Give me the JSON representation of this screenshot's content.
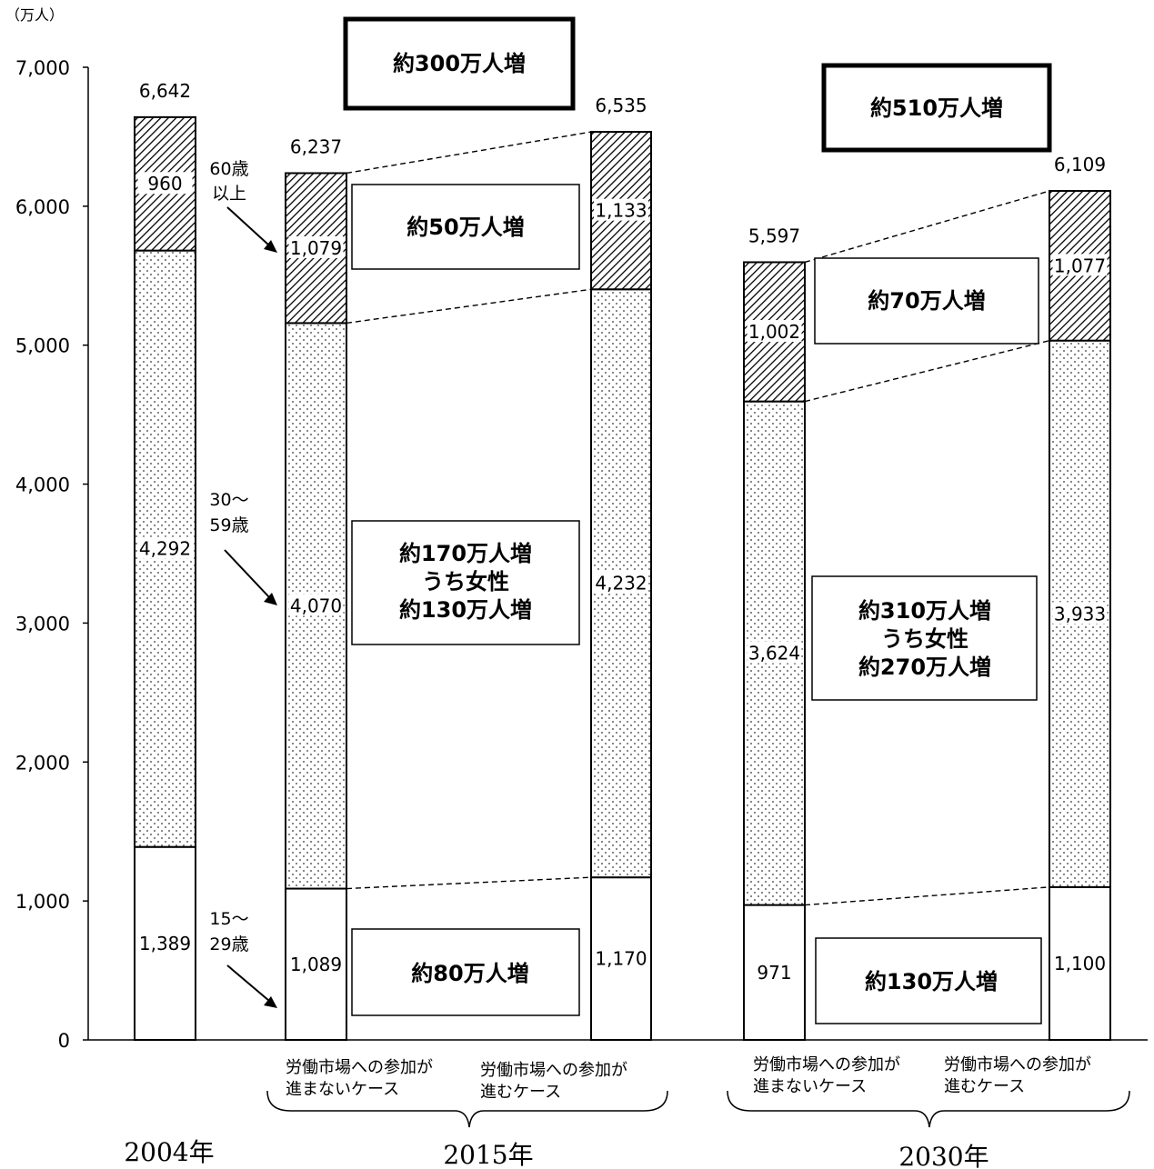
{
  "chart_data": {
    "type": "bar",
    "stacked": true,
    "unit_label": "（万人）",
    "ylim": [
      0,
      7000
    ],
    "yticks": [
      "0",
      "1,000",
      "2,000",
      "3,000",
      "4,000",
      "5,000",
      "6,000",
      "7,000"
    ],
    "ytick_values": [
      0,
      1000,
      2000,
      3000,
      4000,
      5000,
      6000,
      7000
    ],
    "series_names": [
      "15～29歳",
      "30～59歳",
      "60歳以上"
    ],
    "series_colors": [
      "#ffffff",
      "dots",
      "hatch"
    ],
    "bars": [
      {
        "values": [
          1389,
          4292,
          960
        ],
        "labels": [
          "1,389",
          "4,292",
          "960"
        ],
        "total_label": "6,642"
      },
      {
        "values": [
          1089,
          4070,
          1079
        ],
        "labels": [
          "1,089",
          "4,070",
          "1,079"
        ],
        "total_label": "6,237"
      },
      {
        "values": [
          1170,
          4232,
          1133
        ],
        "labels": [
          "1,170",
          "4,232",
          "1,133"
        ],
        "total_label": "6,535"
      },
      {
        "values": [
          971,
          3624,
          1002
        ],
        "labels": [
          "971",
          "3,624",
          "1,002"
        ],
        "total_label": "5,597"
      },
      {
        "values": [
          1100,
          3933,
          1077
        ],
        "labels": [
          "1,100",
          "3,933",
          "1,077"
        ],
        "total_label": "6,109"
      }
    ],
    "categories": [
      "2004年",
      "2015年",
      "2030年"
    ],
    "sub_labels": [
      [
        "労働市場への参加が",
        "進まないケース"
      ],
      [
        "労働市場への参加が",
        "進むケース"
      ],
      [
        "労働市場への参加が",
        "進まないケース"
      ],
      [
        "労働市場への参加が",
        "進むケース"
      ]
    ],
    "age_labels": [
      [
        "60歳",
        "以上"
      ],
      [
        "30～",
        "59歳"
      ],
      [
        "15～",
        "29歳"
      ]
    ],
    "annotations": {
      "total_2015": [
        "約300万人増"
      ],
      "total_2030": [
        "約510万人増"
      ],
      "old_2015": [
        "約50万人増"
      ],
      "mid_2015": [
        "約170万人増",
        "うち女性",
        "約130万人増"
      ],
      "young_2015": [
        "約80万人増"
      ],
      "old_2030": [
        "約70万人増"
      ],
      "mid_2030": [
        "約310万人増",
        "うち女性",
        "約270万人増"
      ],
      "young_2030": [
        "約130万人増"
      ]
    }
  }
}
